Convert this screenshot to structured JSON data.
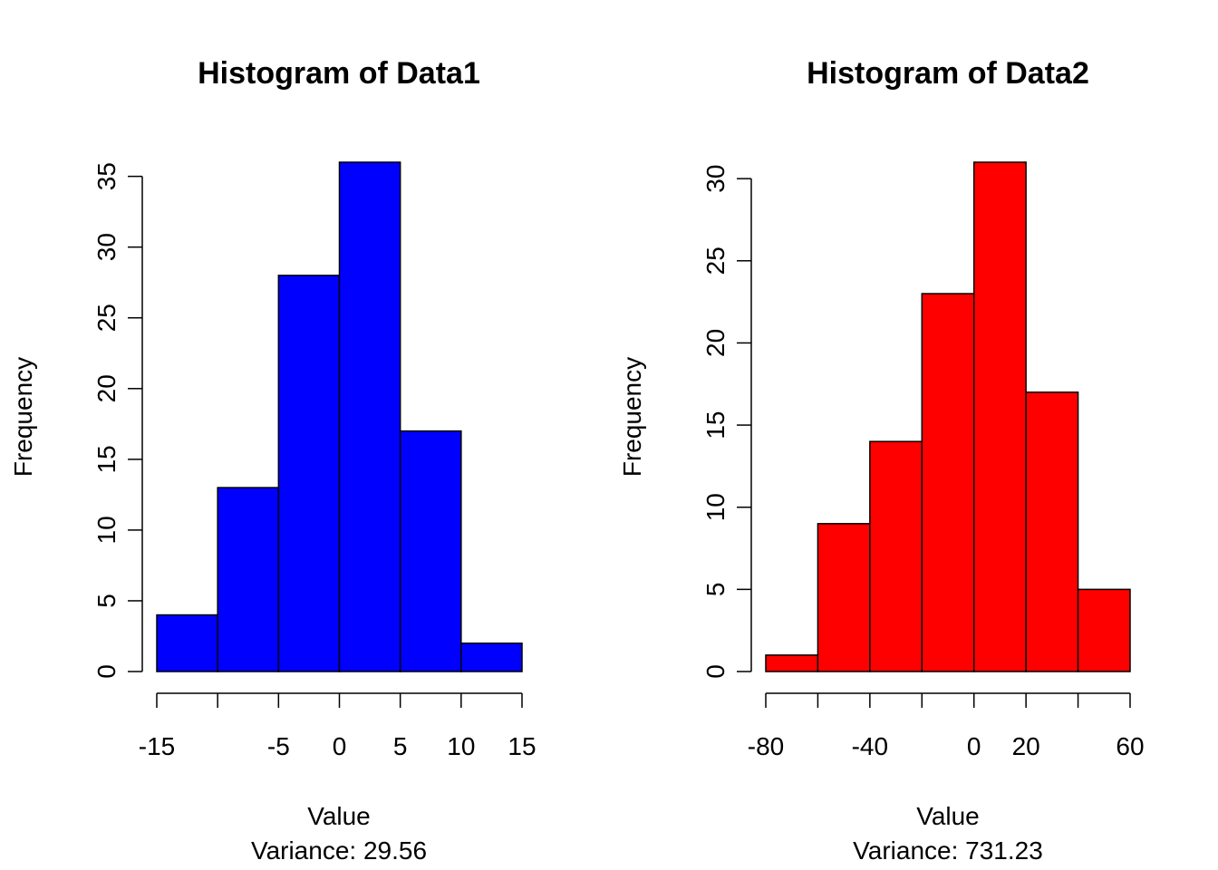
{
  "chart_data": [
    {
      "type": "bar",
      "title": "Histogram of Data1",
      "xlabel": "Value",
      "subtitle": "Variance: 29.56",
      "ylabel": "Frequency",
      "color": "#0000ff",
      "bins": [
        {
          "from": -15,
          "to": -10,
          "count": 4
        },
        {
          "from": -10,
          "to": -5,
          "count": 13
        },
        {
          "from": -5,
          "to": 0,
          "count": 28
        },
        {
          "from": 0,
          "to": 5,
          "count": 36
        },
        {
          "from": 5,
          "to": 10,
          "count": 17
        },
        {
          "from": 10,
          "to": 15,
          "count": 2
        }
      ],
      "x_ticks": [
        -15,
        -10,
        -5,
        0,
        5,
        10,
        15
      ],
      "x_tick_labels": [
        "-15",
        "",
        "-5",
        "0",
        "5",
        "10",
        "15"
      ],
      "y_ticks": [
        0,
        5,
        10,
        15,
        20,
        25,
        30,
        35
      ],
      "y_tick_labels": [
        "0",
        "5",
        "10",
        "15",
        "20",
        "25",
        "30",
        "35"
      ],
      "xlim": [
        -15,
        15
      ],
      "ylim": [
        0,
        36
      ]
    },
    {
      "type": "bar",
      "title": "Histogram of Data2",
      "xlabel": "Value",
      "subtitle": "Variance: 731.23",
      "ylabel": "Frequency",
      "color": "#ff0000",
      "bins": [
        {
          "from": -80,
          "to": -60,
          "count": 1
        },
        {
          "from": -60,
          "to": -40,
          "count": 9
        },
        {
          "from": -40,
          "to": -20,
          "count": 14
        },
        {
          "from": -20,
          "to": 0,
          "count": 23
        },
        {
          "from": 0,
          "to": 20,
          "count": 31
        },
        {
          "from": 20,
          "to": 40,
          "count": 17
        },
        {
          "from": 40,
          "to": 60,
          "count": 5
        }
      ],
      "x_ticks": [
        -80,
        -60,
        -40,
        -20,
        0,
        20,
        40,
        60
      ],
      "x_tick_labels": [
        "-80",
        "",
        "-40",
        "",
        "0",
        "20",
        "",
        "60"
      ],
      "y_ticks": [
        0,
        5,
        10,
        15,
        20,
        25,
        30
      ],
      "y_tick_labels": [
        "0",
        "5",
        "10",
        "15",
        "20",
        "25",
        "30"
      ],
      "xlim": [
        -80,
        60
      ],
      "ylim": [
        0,
        31
      ]
    }
  ]
}
